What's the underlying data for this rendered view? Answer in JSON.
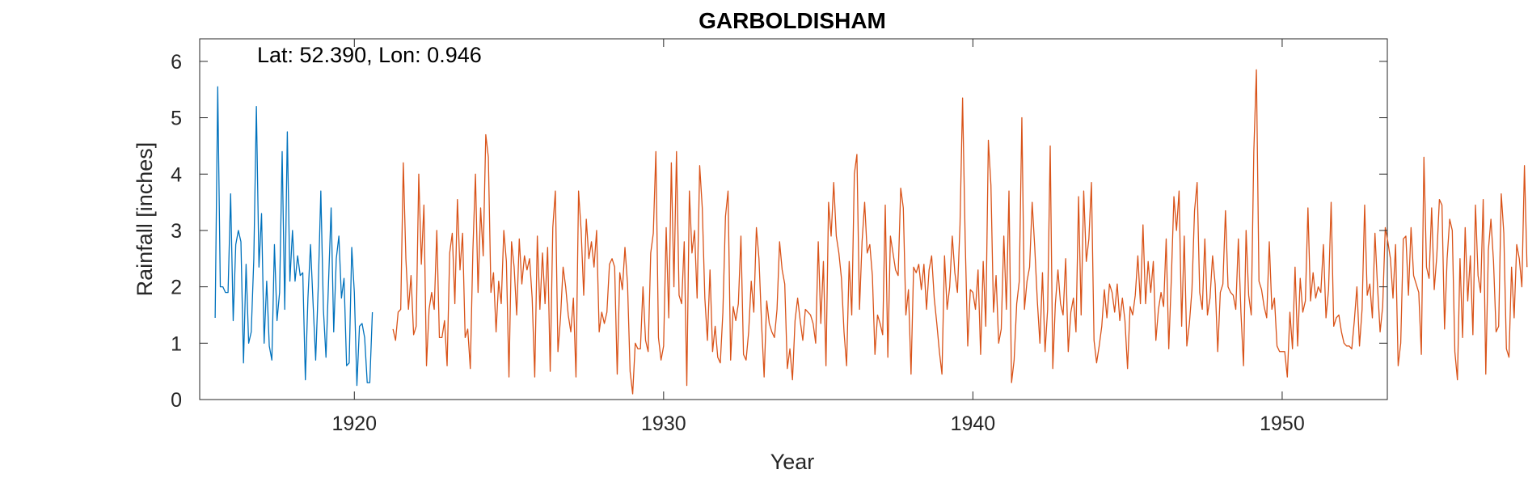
{
  "chart_data": {
    "type": "line",
    "title": "GARBOLDISHAM",
    "xlabel": "Year",
    "ylabel": "Rainfall [inches]",
    "annotation": "Lat: 52.390, Lon: 0.946",
    "xlim": [
      1915.0,
      1953.4
    ],
    "ylim": [
      0,
      6.4
    ],
    "xticks": [
      1920,
      1930,
      1940,
      1950
    ],
    "yticks": [
      0,
      1,
      2,
      3,
      4,
      5,
      6
    ],
    "grid": false,
    "series": [
      {
        "color": "#0072BD",
        "x_start": 1915.5,
        "x_step": 0.0833333,
        "values": [
          1.45,
          5.55,
          2.0,
          2.0,
          1.9,
          1.9,
          3.65,
          1.4,
          2.75,
          3.0,
          2.8,
          0.65,
          2.4,
          1.0,
          1.2,
          2.5,
          5.2,
          2.35,
          3.3,
          1.0,
          2.1,
          0.95,
          0.7,
          2.75,
          1.4,
          1.9,
          4.4,
          1.6,
          4.75,
          2.1,
          3.0,
          2.1,
          2.55,
          2.2,
          2.25,
          0.35,
          1.8,
          2.75,
          1.7,
          0.7,
          2.0,
          3.7,
          1.6,
          0.75,
          2.1,
          3.4,
          1.2,
          2.5,
          2.9,
          1.8,
          2.15,
          0.6,
          0.65,
          2.7,
          1.9,
          0.25,
          1.3,
          1.35,
          1.1,
          0.3,
          0.3,
          1.55
        ]
      },
      {
        "color": "#D95319",
        "x_start": 1921.25,
        "x_step": 0.0833333,
        "values": [
          1.25,
          1.05,
          1.55,
          1.6,
          4.2,
          2.5,
          1.6,
          2.2,
          1.15,
          1.3,
          4.0,
          2.4,
          3.45,
          0.6,
          1.6,
          1.9,
          1.6,
          3.0,
          1.1,
          1.1,
          1.4,
          0.6,
          2.6,
          2.95,
          1.7,
          3.55,
          2.3,
          2.95,
          1.1,
          1.25,
          0.55,
          2.65,
          4.0,
          1.9,
          3.4,
          2.55,
          4.7,
          4.3,
          1.9,
          2.25,
          1.2,
          2.1,
          1.7,
          3.0,
          2.45,
          0.4,
          2.8,
          2.35,
          1.5,
          2.85,
          2.05,
          2.55,
          2.3,
          2.5,
          1.8,
          0.4,
          2.9,
          1.6,
          2.6,
          1.7,
          2.7,
          0.5,
          3.05,
          3.7,
          0.85,
          1.45,
          2.35,
          2.0,
          1.5,
          1.2,
          1.8,
          0.4,
          3.7,
          3.0,
          1.85,
          3.2,
          2.5,
          2.8,
          2.35,
          3.0,
          1.2,
          1.55,
          1.35,
          1.55,
          2.4,
          2.5,
          2.35,
          0.45,
          2.25,
          1.95,
          2.7,
          2.05,
          0.5,
          0.1,
          1.0,
          0.9,
          0.9,
          2.0,
          1.05,
          0.85,
          2.6,
          2.95,
          4.4,
          1.1,
          0.7,
          0.95,
          3.05,
          1.45,
          4.2,
          2.0,
          4.4,
          1.85,
          1.7,
          2.8,
          0.25,
          3.7,
          2.6,
          3.0,
          1.8,
          4.15,
          3.4,
          1.8,
          1.05,
          2.3,
          0.85,
          1.3,
          0.75,
          0.65,
          1.55,
          3.25,
          3.7,
          0.7,
          1.65,
          1.4,
          1.7,
          2.9,
          0.8,
          0.7,
          1.2,
          2.1,
          1.55,
          3.05,
          2.5,
          1.35,
          0.4,
          1.75,
          1.35,
          1.2,
          1.1,
          1.6,
          2.8,
          2.3,
          2.05,
          0.55,
          0.9,
          0.35,
          1.4,
          1.8,
          1.4,
          1.05,
          1.6,
          1.55,
          1.5,
          1.35,
          1.0,
          2.8,
          1.35,
          2.45,
          0.6,
          3.5,
          2.9,
          3.85,
          2.9,
          2.6,
          2.15,
          1.2,
          0.6,
          2.45,
          1.5,
          4.0,
          4.35,
          1.6,
          2.8,
          3.5,
          2.6,
          2.75,
          2.2,
          0.8,
          1.5,
          1.35,
          1.15,
          3.45,
          0.75,
          2.9,
          2.6,
          2.3,
          2.2,
          3.75,
          3.4,
          1.5,
          1.95,
          0.45,
          2.35,
          2.25,
          2.4,
          1.95,
          2.4,
          1.6,
          2.3,
          2.55,
          1.8,
          1.35,
          0.85,
          0.45,
          2.55,
          1.6,
          2.0,
          2.9,
          2.25,
          1.9,
          3.1,
          5.35,
          2.85,
          0.95,
          1.95,
          1.9,
          1.6,
          2.3,
          0.8,
          2.45,
          1.3,
          4.6,
          3.8,
          1.55,
          2.2,
          1.0,
          1.25,
          2.9,
          1.6,
          3.7,
          0.3,
          0.7,
          1.7,
          2.1,
          5.0,
          1.6,
          2.1,
          2.35,
          3.5,
          2.7,
          1.75,
          1.0,
          2.25,
          0.85,
          1.6,
          4.5,
          0.55,
          1.7,
          2.3,
          1.7,
          1.5,
          2.5,
          0.85,
          1.55,
          1.8,
          1.2,
          3.6,
          1.5,
          3.7,
          2.45,
          2.85,
          3.85,
          1.05,
          0.65,
          0.95,
          1.3,
          1.95,
          1.45,
          2.05,
          1.9,
          1.55,
          2.05,
          1.4,
          1.8,
          1.4,
          0.55,
          1.65,
          1.5,
          1.85,
          2.55,
          1.7,
          3.1,
          1.7,
          2.45,
          1.9,
          2.45,
          1.05,
          1.6,
          1.9,
          1.65,
          2.85,
          0.9,
          2.15,
          3.6,
          3.0,
          3.7,
          1.3,
          2.9,
          0.95,
          1.35,
          1.95,
          3.35,
          3.85,
          1.9,
          1.6,
          2.85,
          1.5,
          1.8,
          2.55,
          2.05,
          0.85,
          1.9,
          2.05,
          3.35,
          2.0,
          1.9,
          1.85,
          1.6,
          2.85,
          1.55,
          0.6,
          3.0,
          1.85,
          1.5,
          4.4,
          5.85,
          2.1,
          1.95,
          1.65,
          1.45,
          2.8,
          1.6,
          1.8,
          0.95,
          0.85,
          0.85,
          0.85,
          0.4,
          1.55,
          0.9,
          2.35,
          0.95,
          2.15,
          1.55,
          1.75,
          3.4,
          1.75,
          2.25,
          1.8,
          2.0,
          1.9,
          2.75,
          1.45,
          1.95,
          3.5,
          1.3,
          1.45,
          1.5,
          1.2,
          1.0,
          0.95,
          0.95,
          0.9,
          1.4,
          2.0,
          0.95,
          1.6,
          3.45,
          1.85,
          2.05,
          1.45,
          2.95,
          2.0,
          1.2,
          1.65,
          3.05,
          2.8,
          2.5,
          1.8,
          2.75,
          0.6,
          1.0,
          2.85,
          2.9,
          1.85,
          3.05,
          2.2,
          2.05,
          1.9,
          0.8,
          4.3,
          2.35,
          2.15,
          3.4,
          1.95,
          2.55,
          3.55,
          3.45,
          1.25,
          2.5,
          3.2,
          3.0,
          0.85,
          0.35,
          2.5,
          1.1,
          3.05,
          1.75,
          2.55,
          1.15,
          3.45,
          2.2,
          1.9,
          3.55,
          0.45,
          2.65,
          3.2,
          2.45,
          1.2,
          1.3,
          3.65,
          2.95,
          0.9,
          0.75,
          2.35,
          1.45,
          2.75,
          2.5,
          2.0,
          4.15,
          2.35
        ]
      }
    ]
  }
}
